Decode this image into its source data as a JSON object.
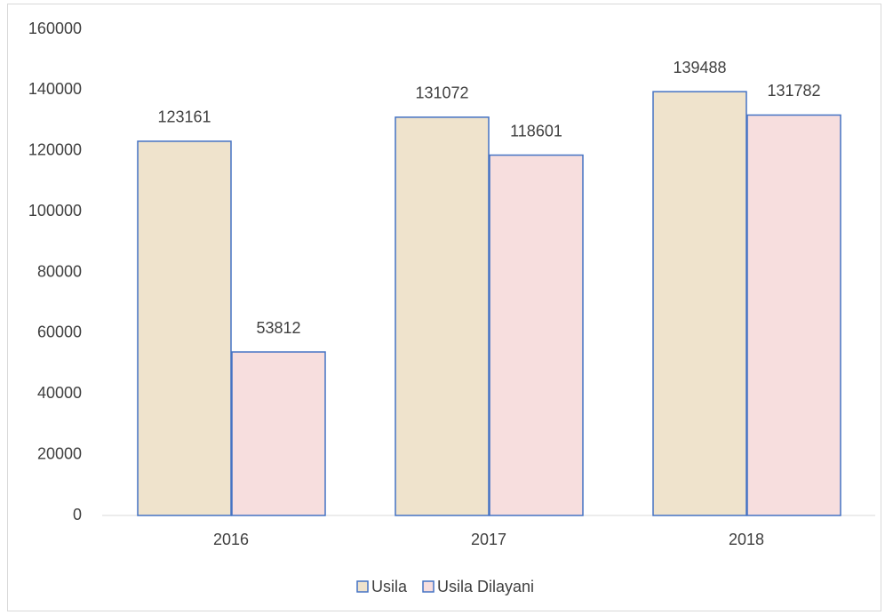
{
  "chart_data": {
    "type": "bar",
    "categories": [
      "2016",
      "2017",
      "2018"
    ],
    "series": [
      {
        "name": "Usila",
        "color": "#efe3cc",
        "values": [
          123161,
          131072,
          139488
        ]
      },
      {
        "name": "Usila Dilayani",
        "color": "#f7dede",
        "values": [
          53812,
          118601,
          131782
        ]
      }
    ],
    "border_color": "#4472c4",
    "ylim": [
      0,
      160000
    ],
    "yticks": [
      0,
      20000,
      40000,
      60000,
      80000,
      100000,
      120000,
      140000,
      160000
    ],
    "grid": false,
    "legend": "bottom"
  }
}
